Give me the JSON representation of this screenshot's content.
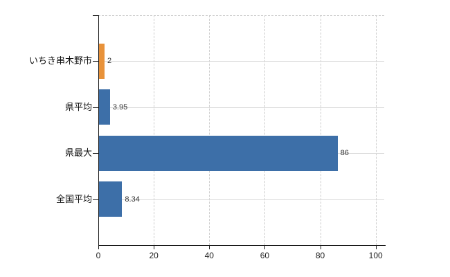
{
  "chart_data": {
    "type": "bar",
    "orientation": "horizontal",
    "title": "",
    "xlabel": "",
    "ylabel": "",
    "categories": [
      "いちき串木野市",
      "県平均",
      "県最大",
      "全国平均"
    ],
    "values": [
      2,
      3.95,
      86,
      8.34
    ],
    "value_labels": [
      "2",
      "3.95",
      "86",
      "8.34"
    ],
    "bar_colors": [
      "#E8923A",
      "#3D6FA8",
      "#3D6FA8",
      "#3D6FA8"
    ],
    "xlim": [
      0,
      103
    ],
    "x_ticks": [
      "0",
      "20",
      "40",
      "60",
      "80",
      "100"
    ],
    "x_tick_values": [
      0,
      20,
      40,
      60,
      80,
      100
    ],
    "grid": "horizontal solid at category centers, vertical dashed at x ticks, dashed top border",
    "legend": false
  },
  "colors": {
    "bar_blue": "#3D6FA8",
    "bar_orange": "#E8923A",
    "axis": "#1a1a1a",
    "h_gridline": "#d9d9d9",
    "v_gridline_dashed": "#cccccc",
    "text": "#222222",
    "background": "#ffffff"
  }
}
